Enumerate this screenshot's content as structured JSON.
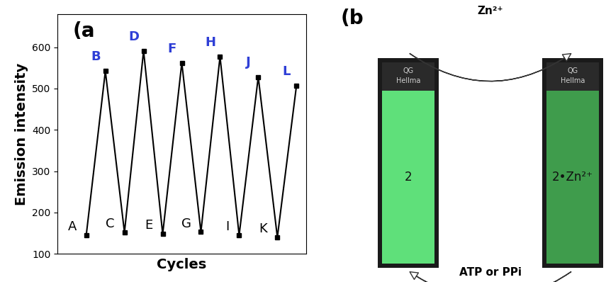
{
  "chart_data": {
    "type": "line",
    "panel_label": "(a",
    "x_label": "Cycles",
    "y_label": "Emission intensity",
    "categories": [
      "A",
      "B",
      "C",
      "D",
      "E",
      "F",
      "G",
      "H",
      "I",
      "J",
      "K",
      "L"
    ],
    "series": [
      {
        "values": [
          145,
          542,
          152,
          591,
          148,
          562,
          153,
          577,
          145,
          528,
          140,
          507
        ],
        "color": "#000000",
        "marker": "s",
        "line_style": "solid"
      }
    ],
    "ylim": [
      100,
      680
    ],
    "yticks": [
      100,
      200,
      300,
      400,
      500,
      600
    ],
    "tick_labels": "y",
    "grid": false
  },
  "diagram": {
    "panel_label": "(b",
    "nodes": [
      {
        "label": "2",
        "cuvette_texts": [
          "QG",
          "Hellma"
        ]
      },
      {
        "label": "2•Zn²⁺",
        "cuvette_texts": [
          "QG",
          "Hellma"
        ]
      }
    ],
    "arrows": [
      {
        "label": "Zn²⁺",
        "from": 0,
        "to": 1
      },
      {
        "label": "ATP or PPi",
        "from": 1,
        "to": 0
      }
    ]
  }
}
